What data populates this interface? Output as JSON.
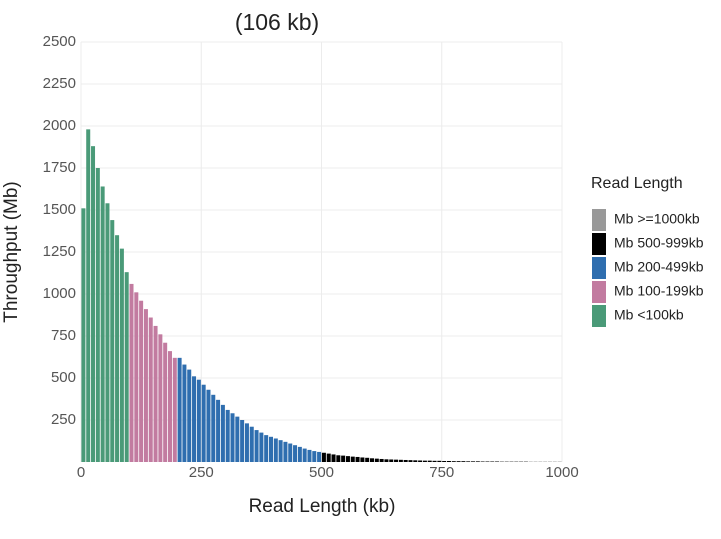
{
  "chart_data": {
    "type": "histogram",
    "title": "(106 kb)",
    "x_label": "Read Length (kb)",
    "y_label": "Throughput (Mb)",
    "xlim": [
      0,
      1000
    ],
    "xticks": [
      0,
      250,
      500,
      750,
      1000
    ],
    "ylim": [
      0,
      2500
    ],
    "yticks": [
      250,
      500,
      750,
      1000,
      1250,
      1500,
      1750,
      2000,
      2250,
      2500
    ],
    "grid": true,
    "legend_title": "Read Length",
    "legend_position": "right",
    "series": [
      {
        "name": "Mb >=1000kb",
        "color": "#999999",
        "bins": [
          1000
        ],
        "values": []
      },
      {
        "name": "Mb 500-999kb",
        "color": "#000000",
        "bins": [
          500,
          510,
          520,
          530,
          540,
          550,
          560,
          570,
          580,
          590,
          600,
          610,
          620,
          630,
          640,
          650,
          660,
          670,
          680,
          690,
          700,
          710,
          720,
          730,
          740,
          750,
          760,
          770,
          780,
          790,
          800,
          810,
          820,
          830,
          840,
          850,
          860,
          870,
          880,
          890,
          900,
          910,
          920,
          930,
          940,
          950,
          960,
          970,
          980,
          990,
          1000
        ],
        "values": [
          55,
          50,
          45,
          40,
          38,
          35,
          32,
          30,
          27,
          25,
          22,
          20,
          18,
          16,
          15,
          14,
          13,
          12,
          11,
          10,
          9,
          8,
          8,
          7,
          7,
          6,
          6,
          5,
          5,
          5,
          4,
          4,
          4,
          3,
          3,
          3,
          3,
          2,
          2,
          2,
          2,
          2,
          2,
          1,
          1,
          1,
          1,
          1,
          1,
          1
        ]
      },
      {
        "name": "Mb 200-499kb",
        "color": "#2f6eaf",
        "bins": [
          200,
          210,
          220,
          230,
          240,
          250,
          260,
          270,
          280,
          290,
          300,
          310,
          320,
          330,
          340,
          350,
          360,
          370,
          380,
          390,
          400,
          410,
          420,
          430,
          440,
          450,
          460,
          470,
          480,
          490,
          500
        ],
        "values": [
          620,
          580,
          550,
          510,
          490,
          460,
          430,
          400,
          370,
          340,
          310,
          290,
          270,
          250,
          230,
          210,
          190,
          175,
          160,
          150,
          140,
          130,
          120,
          110,
          100,
          90,
          80,
          72,
          65,
          60
        ]
      },
      {
        "name": "Mb 100-199kb",
        "color": "#c27ba0",
        "bins": [
          100,
          110,
          120,
          130,
          140,
          150,
          160,
          170,
          180,
          190,
          200
        ],
        "values": [
          1060,
          1010,
          960,
          910,
          860,
          810,
          760,
          710,
          660,
          620
        ]
      },
      {
        "name": "Mb <100kb",
        "color": "#4a9a78",
        "bins": [
          0,
          10,
          20,
          30,
          40,
          50,
          60,
          70,
          80,
          90,
          100
        ],
        "values": [
          1510,
          1980,
          1880,
          1750,
          1640,
          1540,
          1440,
          1350,
          1270,
          1130
        ]
      }
    ]
  }
}
